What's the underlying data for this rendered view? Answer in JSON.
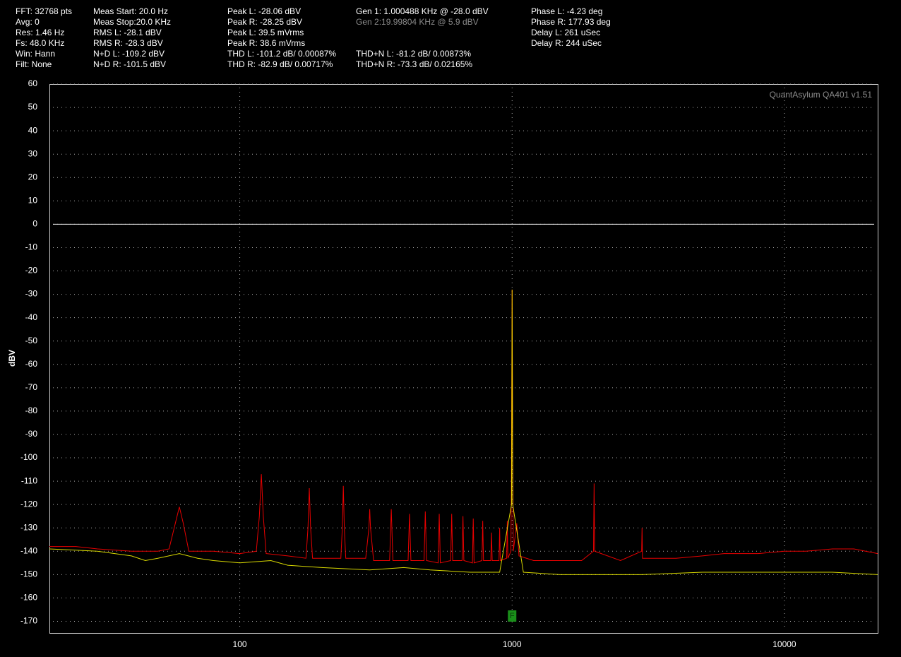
{
  "header": {
    "columns": [
      [
        "FFT: 32768 pts",
        "Avg: 0",
        "Res: 1.46 Hz",
        "Fs: 48.0 KHz",
        "Win: Hann",
        "Filt: None"
      ],
      [
        "Meas Start: 20.0 Hz",
        "Meas Stop:20.0 KHz",
        "RMS L: -28.1 dBV",
        "RMS R: -28.3 dBV",
        "N+D L: -109.2 dBV",
        "N+D R: -101.5 dBV"
      ],
      [
        "Peak L: -28.06 dBV",
        "Peak R: -28.25 dBV",
        "Peak L: 39.5 mVrms",
        "Peak R: 38.6 mVrms",
        "THD L: -101.2 dB/ 0.00087%",
        "THD R: -82.9 dB/ 0.00717%"
      ],
      [
        "Gen 1: 1.000488 KHz @ -28.0  dBV",
        "Gen 2:19.99804 KHz @ 5.9  dBV",
        null,
        null,
        "THD+N L: -81.2 dB/ 0.00873%",
        "THD+N R: -73.3 dB/ 0.02165%"
      ],
      [
        "Phase L: -4.23 deg",
        "Phase R: 177.93 deg",
        "Delay L: 261 uSec",
        "Delay R: 244 uSec"
      ]
    ]
  },
  "chart_data": {
    "type": "line",
    "watermark": "QuantAsylum QA401 v1.51",
    "ylabel": "dBV",
    "xscale": "log",
    "xlim": [
      20,
      22000
    ],
    "xticks": [
      100,
      1000,
      10000
    ],
    "ylim": [
      -175,
      60
    ],
    "yticks": [
      60,
      50,
      40,
      30,
      20,
      10,
      0,
      -10,
      -20,
      -30,
      -40,
      -50,
      -60,
      -70,
      -80,
      -90,
      -100,
      -110,
      -120,
      -130,
      -140,
      -150,
      -160,
      -170
    ],
    "grid": true,
    "reference_line": 0,
    "marker": {
      "x": 1000,
      "label": "F"
    },
    "series": [
      {
        "color": "#e80000",
        "x": [
          20,
          25,
          30,
          40,
          50,
          55,
          58,
          60,
          62,
          65,
          80,
          100,
          115,
          118,
          120,
          122,
          125,
          150,
          175,
          178,
          180,
          182,
          185,
          200,
          235,
          238,
          240,
          242,
          245,
          290,
          298,
          300,
          302,
          310,
          355,
          360,
          365,
          415,
          420,
          425,
          475,
          480,
          485,
          535,
          540,
          545,
          595,
          600,
          605,
          655,
          660,
          665,
          715,
          720,
          725,
          775,
          780,
          785,
          835,
          840,
          845,
          895,
          900,
          905,
          955,
          960,
          965,
          990,
          995,
          1000,
          1005,
          1010,
          1040,
          1060,
          1200,
          1500,
          1800,
          1990,
          2000,
          2010,
          2500,
          2990,
          3000,
          3010,
          4000,
          5000,
          6000,
          8000,
          10000,
          12000,
          15000,
          18000,
          22000
        ],
        "values": [
          -138,
          -138,
          -139,
          -140,
          -140,
          -139,
          -128,
          -121,
          -128,
          -140,
          -140,
          -141,
          -140,
          -125,
          -107,
          -125,
          -141,
          -142,
          -143,
          -130,
          -113,
          -130,
          -143,
          -143,
          -143,
          -130,
          -112,
          -130,
          -143,
          -143,
          -130,
          -122,
          -130,
          -144,
          -144,
          -122,
          -144,
          -144,
          -124,
          -144,
          -144,
          -123,
          -144,
          -145,
          -124,
          -145,
          -144,
          -124,
          -144,
          -144,
          -125,
          -144,
          -145,
          -126,
          -145,
          -144,
          -127,
          -144,
          -144,
          -132,
          -144,
          -144,
          -130,
          -144,
          -143,
          -127,
          -143,
          -140,
          -100,
          -28,
          -100,
          -140,
          -128,
          -142,
          -144,
          -144,
          -144,
          -140,
          -111,
          -140,
          -144,
          -140,
          -130,
          -143,
          -143,
          -142,
          -141,
          -141,
          -140,
          -140,
          -139,
          -139,
          -141
        ]
      },
      {
        "color": "#ffff00",
        "x": [
          20,
          30,
          40,
          45,
          50,
          60,
          70,
          80,
          100,
          130,
          150,
          200,
          300,
          400,
          500,
          700,
          900,
          995,
          1000,
          1005,
          1100,
          1500,
          2000,
          3000,
          5000,
          8000,
          10000,
          15000,
          22000
        ],
        "values": [
          -139,
          -140,
          -142,
          -144,
          -143,
          -141,
          -143,
          -144,
          -145,
          -144,
          -146,
          -147,
          -148,
          -147,
          -148,
          -149,
          -149,
          -120,
          -28,
          -120,
          -149,
          -150,
          -150,
          -150,
          -149,
          -149,
          -149,
          -149,
          -150
        ]
      }
    ]
  }
}
